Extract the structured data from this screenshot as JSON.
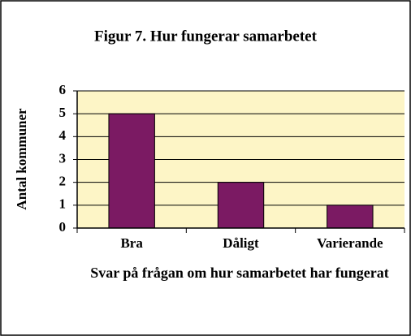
{
  "chart_data": {
    "type": "bar",
    "title": "Figur 7. Hur fungerar samarbetet",
    "y_label": "Antal kommuner",
    "x_label": "Svar på frågan om hur samarbetet har fungerat",
    "categories": [
      "Bra",
      "Dåligt",
      "Varierande"
    ],
    "values": [
      5,
      2,
      1
    ],
    "color": "#7b1a63",
    "ylim": [
      0,
      6
    ],
    "yticks": [
      0,
      1,
      2,
      3,
      4,
      5,
      6
    ],
    "grid": true
  }
}
